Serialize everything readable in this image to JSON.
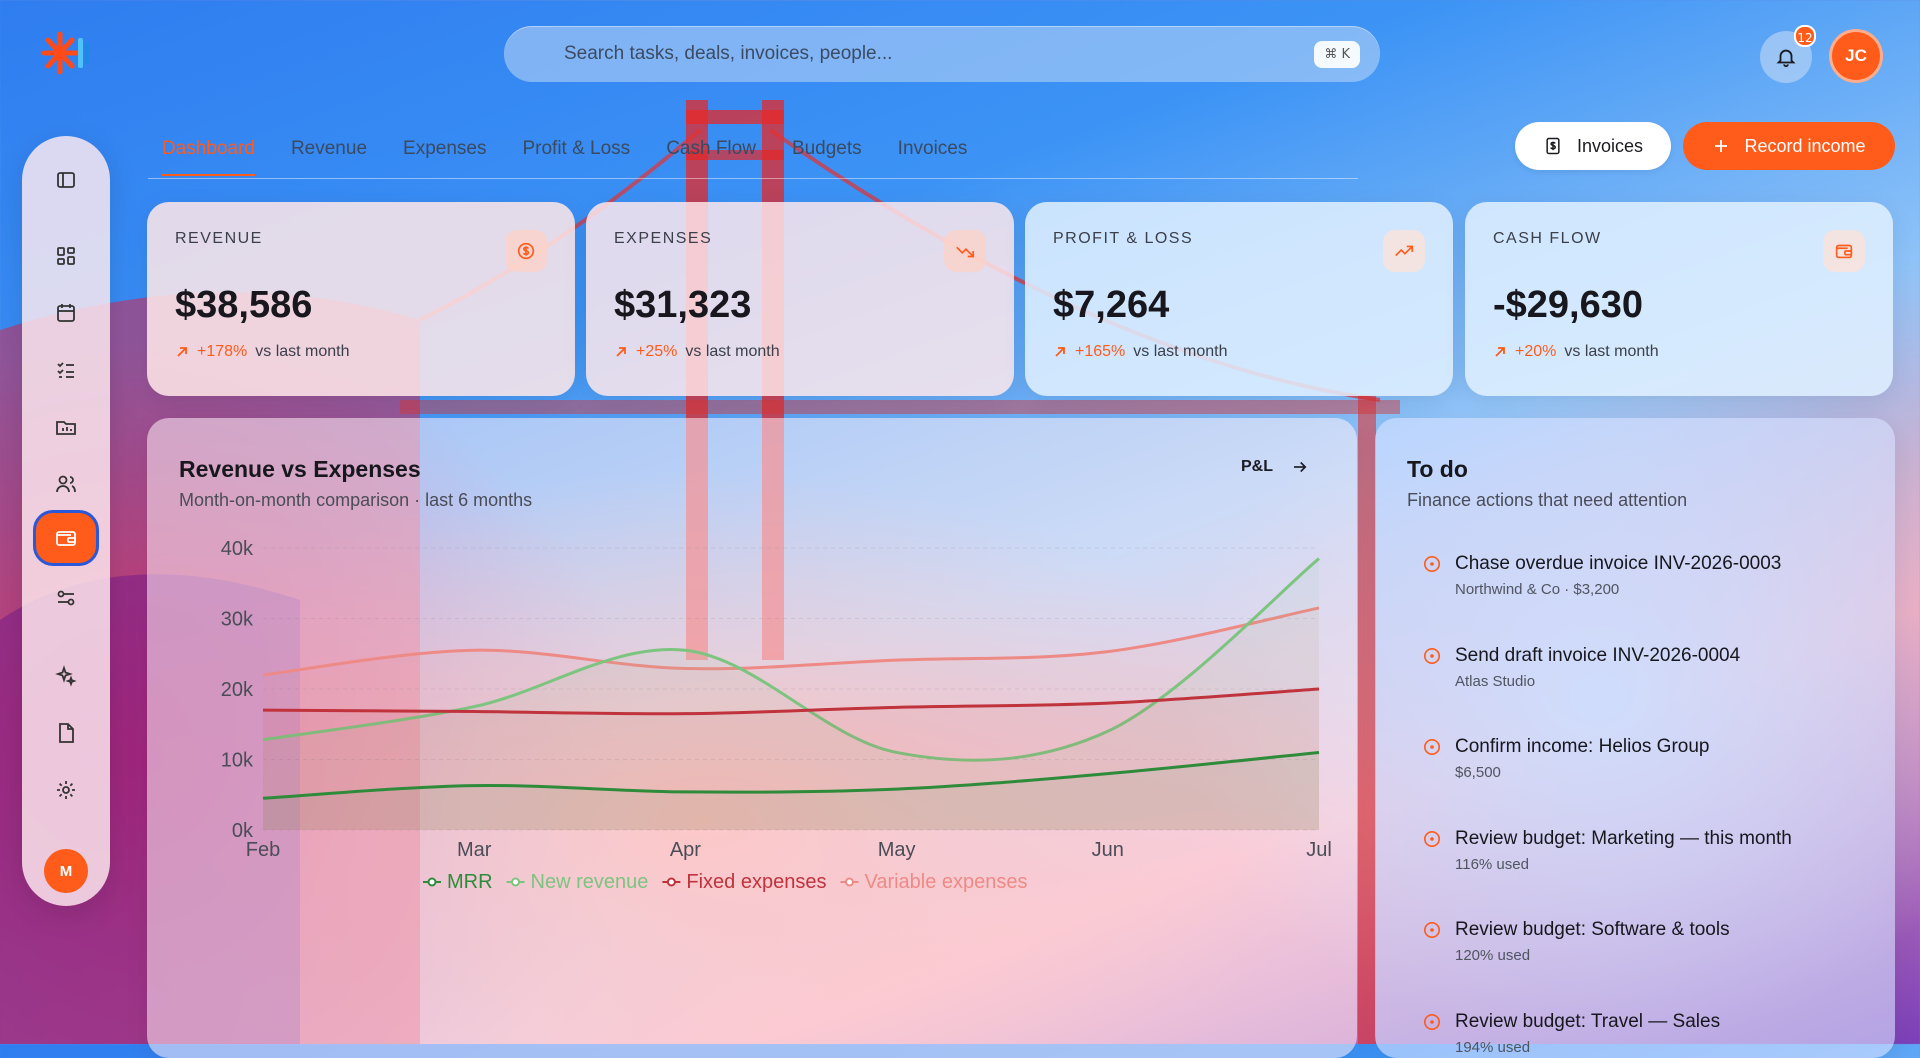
{
  "search": {
    "placeholder": "Search tasks, deals, invoices, people...",
    "shortcut": "⌘ K"
  },
  "notifications": {
    "count": "12"
  },
  "user": {
    "initials": "JC",
    "sidebar_initial": "M"
  },
  "tabs": [
    "Dashboard",
    "Revenue",
    "Expenses",
    "Profit & Loss",
    "Cash Flow",
    "Budgets",
    "Invoices"
  ],
  "actions": {
    "invoices_label": "Invoices",
    "record_label": "Record income"
  },
  "kpis": [
    {
      "label": "REVENUE",
      "value": "$38,586",
      "delta": "+178%",
      "suffix": "vs last month",
      "icon": "dollar-circle-icon"
    },
    {
      "label": "EXPENSES",
      "value": "$31,323",
      "delta": "+25%",
      "suffix": "vs last month",
      "icon": "trend-down-icon"
    },
    {
      "label": "PROFIT & LOSS",
      "value": "$7,264",
      "delta": "+165%",
      "suffix": "vs last month",
      "icon": "trend-up-icon"
    },
    {
      "label": "CASH FLOW",
      "value": "-$29,630",
      "delta": "+20%",
      "suffix": "vs last month",
      "icon": "wallet-icon"
    }
  ],
  "chart_card": {
    "title": "Revenue vs Expenses",
    "subtitle": "Month-on-month comparison · last 6 months",
    "link": "P&L"
  },
  "chart_data": {
    "type": "line",
    "categories": [
      "Feb",
      "Mar",
      "Apr",
      "May",
      "Jun",
      "Jul"
    ],
    "y_ticks": [
      "0k",
      "10k",
      "20k",
      "30k",
      "40k"
    ],
    "ylim": [
      0,
      40000
    ],
    "grid": true,
    "legend": "bottom",
    "series": [
      {
        "name": "MRR",
        "color": "#2e8b3a",
        "values": [
          4500,
          6300,
          5400,
          5800,
          8000,
          11000
        ]
      },
      {
        "name": "New revenue",
        "color": "#7cc47f",
        "values": [
          12800,
          17500,
          25500,
          11000,
          14000,
          38500
        ]
      },
      {
        "name": "Fixed expenses",
        "color": "#c0333c",
        "values": [
          17000,
          16800,
          16500,
          17400,
          18000,
          20000
        ]
      },
      {
        "name": "Variable expenses",
        "color": "#ee8a86",
        "values": [
          22000,
          25500,
          22900,
          24100,
          25300,
          31500
        ]
      }
    ]
  },
  "todo": {
    "title": "To do",
    "subtitle": "Finance actions that need attention",
    "items": [
      {
        "title": "Chase overdue invoice INV-2026-0003",
        "sub": "Northwind & Co · $3,200"
      },
      {
        "title": "Send draft invoice INV-2026-0004",
        "sub": "Atlas Studio"
      },
      {
        "title": "Confirm income: Helios Group",
        "sub": "$6,500"
      },
      {
        "title": "Review budget: Marketing — this month",
        "sub": "116% used"
      },
      {
        "title": "Review budget: Software & tools",
        "sub": "120% used"
      },
      {
        "title": "Review budget: Travel — Sales",
        "sub": "194% used"
      }
    ]
  }
}
